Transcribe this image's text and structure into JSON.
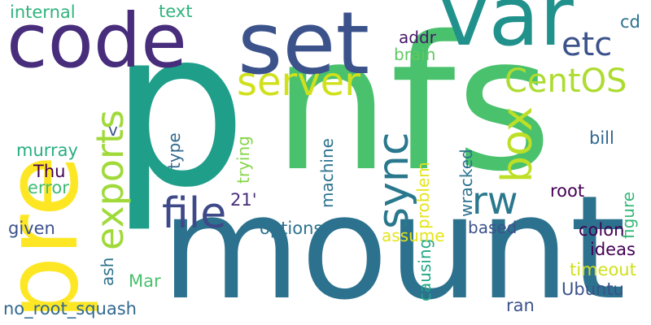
{
  "words": [
    {
      "text": "p",
      "color": "#1f9e89",
      "vertical": false
    },
    {
      "text": "nfs",
      "color": "#4ac16d",
      "vertical": false
    },
    {
      "text": "mount",
      "color": "#2c728e",
      "vertical": false
    },
    {
      "text": "pre",
      "color": "#fde725",
      "vertical": true
    },
    {
      "text": "code",
      "color": "#472d7b",
      "vertical": false
    },
    {
      "text": "set",
      "color": "#3b528b",
      "vertical": false
    },
    {
      "text": "var",
      "color": "#21918c",
      "vertical": false
    },
    {
      "text": "server",
      "color": "#d0e11c",
      "vertical": false
    },
    {
      "text": "exports",
      "color": "#a0da39",
      "vertical": true
    },
    {
      "text": "file",
      "color": "#3e4989",
      "vertical": false
    },
    {
      "text": "sync",
      "color": "#2a788e",
      "vertical": true
    },
    {
      "text": "box",
      "color": "#bddf26",
      "vertical": true
    },
    {
      "text": "rw",
      "color": "#2a788e",
      "vertical": false
    },
    {
      "text": "CentOS",
      "color": "#addc30",
      "vertical": false
    },
    {
      "text": "etc",
      "color": "#3b528b",
      "vertical": false
    },
    {
      "text": "internal",
      "color": "#2fb47c",
      "vertical": false
    },
    {
      "text": "text",
      "color": "#2fb47c",
      "vertical": false
    },
    {
      "text": "cd",
      "color": "#2c728e",
      "vertical": false
    },
    {
      "text": "addr",
      "color": "#48186a",
      "vertical": false
    },
    {
      "text": "brain",
      "color": "#5ec962",
      "vertical": false
    },
    {
      "text": "v",
      "color": "#3b528b",
      "vertical": false
    },
    {
      "text": "type",
      "color": "#31688e",
      "vertical": true
    },
    {
      "text": "murray",
      "color": "#28ae80",
      "vertical": false
    },
    {
      "text": "Thu",
      "color": "#440154",
      "vertical": false
    },
    {
      "text": "error",
      "color": "#3fbc73",
      "vertical": false
    },
    {
      "text": "given",
      "color": "#3b528b",
      "vertical": false
    },
    {
      "text": "trying",
      "color": "#86d549",
      "vertical": true
    },
    {
      "text": "21'",
      "color": "#472d7b",
      "vertical": false
    },
    {
      "text": "machine",
      "color": "#2c728e",
      "vertical": true
    },
    {
      "text": "problem",
      "color": "#e5e419",
      "vertical": true
    },
    {
      "text": "causing",
      "color": "#22a785",
      "vertical": true
    },
    {
      "text": "wracked",
      "color": "#2c728e",
      "vertical": true
    },
    {
      "text": "root",
      "color": "#440154",
      "vertical": false
    },
    {
      "text": "figure",
      "color": "#35b779",
      "vertical": true
    },
    {
      "text": "bill",
      "color": "#31688e",
      "vertical": false
    },
    {
      "text": "options",
      "color": "#2c728e",
      "vertical": false
    },
    {
      "text": "assume",
      "color": "#e5e419",
      "vertical": false
    },
    {
      "text": "based",
      "color": "#3b528b",
      "vertical": false
    },
    {
      "text": "colon",
      "color": "#440154",
      "vertical": false
    },
    {
      "text": "ideas",
      "color": "#440154",
      "vertical": false
    },
    {
      "text": "timeout",
      "color": "#d0e11c",
      "vertical": false
    },
    {
      "text": "ash",
      "color": "#2c728e",
      "vertical": true
    },
    {
      "text": "Mar",
      "color": "#4ac16d",
      "vertical": false
    },
    {
      "text": "Ubuntu",
      "color": "#3b528b",
      "vertical": false
    },
    {
      "text": "no_root_squash",
      "color": "#31688e",
      "vertical": false
    },
    {
      "text": "ran",
      "color": "#3b528b",
      "vertical": false
    }
  ]
}
